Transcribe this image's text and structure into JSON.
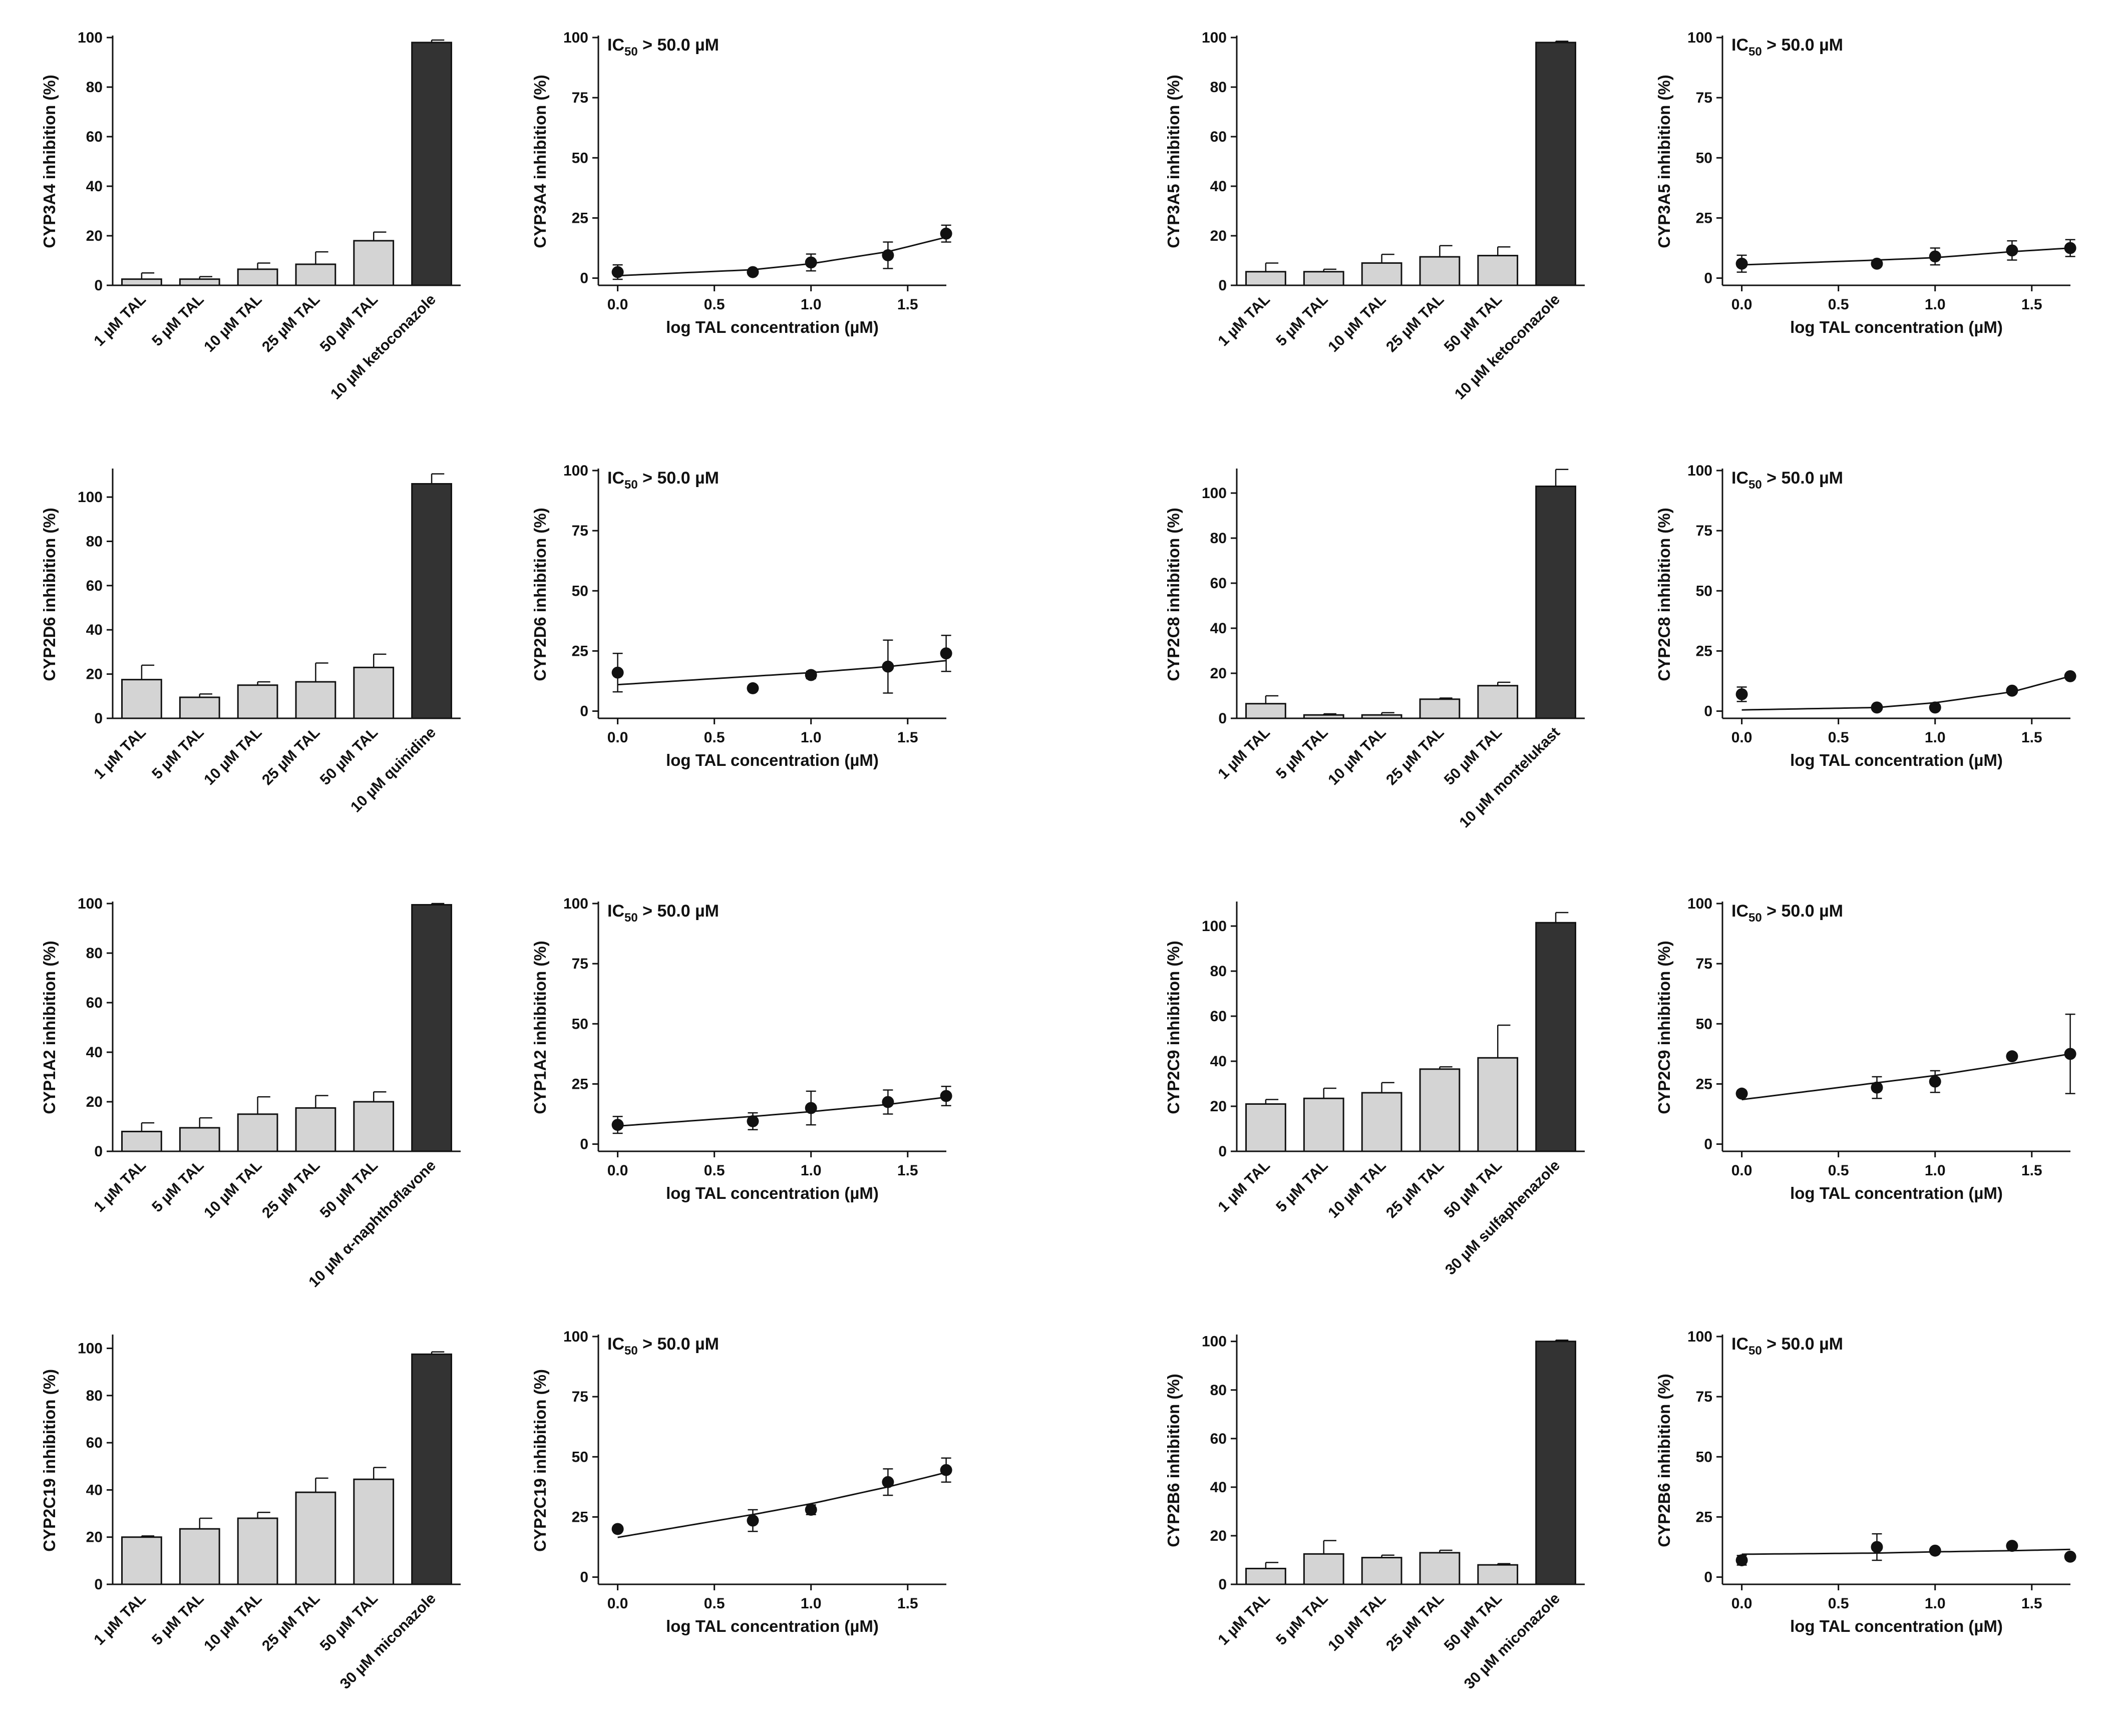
{
  "common": {
    "bar_categories": [
      "1 µM TAL",
      "5 µM TAL",
      "10 µM TAL",
      "25 µM TAL",
      "50 µM TAL"
    ],
    "dose_x": [
      0.0,
      0.699,
      1.0,
      1.398,
      1.699
    ],
    "dose_xticks": [
      "0.0",
      "0.5",
      "1.0",
      "1.5"
    ],
    "dose_xlabel": "log TAL concentration (µM)",
    "ic50_prefix": "IC",
    "ic50_sub": "50",
    "ic50_suffix": " > 50.0 µM",
    "colors": {
      "tal_bar": "#d4d4d4",
      "control_bar": "#333333",
      "axis": "#111111"
    }
  },
  "chart_data": [
    {
      "type": "bar",
      "enzyme": "CYP3A4",
      "ylabel": "CYP3A4 inhibition (%)",
      "categories": [
        "1 µM TAL",
        "5 µM TAL",
        "10 µM TAL",
        "25 µM TAL",
        "50 µM TAL",
        "10 µM ketoconazole"
      ],
      "values": [
        2.5,
        2.5,
        6.5,
        8.5,
        18,
        98
      ],
      "errors": [
        2.5,
        1.0,
        2.5,
        5.0,
        3.5,
        1.0
      ],
      "ylim": [
        0,
        100
      ],
      "yticks": [
        0,
        20,
        40,
        60,
        80,
        100
      ]
    },
    {
      "type": "scatter",
      "enzyme": "CYP3A4",
      "ylabel": "CYP3A4 inhibition (%)",
      "xlabel": "log TAL concentration (µM)",
      "ic50": "IC50 > 50.0 µM",
      "x": [
        0.0,
        0.699,
        1.0,
        1.398,
        1.699
      ],
      "y": [
        2.5,
        2.5,
        6.5,
        9.5,
        18.5
      ],
      "errors": [
        3,
        1,
        3.5,
        5.5,
        3.5
      ],
      "fit": [
        1.0,
        3.5,
        6.0,
        11.0,
        17.0
      ],
      "xlim": [
        -0.1,
        1.7
      ],
      "ylim": [
        -3,
        100
      ],
      "yticks": [
        0,
        25,
        50,
        75,
        100
      ]
    },
    {
      "type": "bar",
      "enzyme": "CYP3A5",
      "ylabel": "CYP3A5 inhibition (%)",
      "categories": [
        "1 µM TAL",
        "5 µM TAL",
        "10 µM TAL",
        "25 µM TAL",
        "50 µM TAL",
        "10 µM ketoconazole"
      ],
      "values": [
        5.5,
        5.5,
        9,
        11.5,
        12,
        98
      ],
      "errors": [
        3.5,
        1.0,
        3.5,
        4.5,
        3.5,
        0.5
      ],
      "ylim": [
        0,
        100
      ],
      "yticks": [
        0,
        20,
        40,
        60,
        80,
        100
      ]
    },
    {
      "type": "scatter",
      "enzyme": "CYP3A5",
      "ylabel": "CYP3A5 inhibition (%)",
      "xlabel": "log TAL concentration (µM)",
      "ic50": "IC50 > 50.0 µM",
      "x": [
        0.0,
        0.699,
        1.0,
        1.398,
        1.699
      ],
      "y": [
        6,
        6,
        9,
        11.5,
        12.5
      ],
      "errors": [
        3.5,
        1,
        3.5,
        4,
        3.5
      ],
      "fit": [
        5.5,
        7.5,
        8.5,
        11.0,
        12.5
      ],
      "xlim": [
        -0.1,
        1.7
      ],
      "ylim": [
        -3,
        100
      ],
      "yticks": [
        0,
        25,
        50,
        75,
        100
      ]
    },
    {
      "type": "bar",
      "enzyme": "CYP2D6",
      "ylabel": "CYP2D6 inhibition (%)",
      "categories": [
        "1 µM TAL",
        "5 µM TAL",
        "10 µM TAL",
        "25 µM TAL",
        "50 µM TAL",
        "10 µM quinidine"
      ],
      "values": [
        17.5,
        9.5,
        15,
        16.5,
        23,
        106
      ],
      "errors": [
        6.5,
        1.5,
        1.5,
        8.5,
        6.0,
        4.5
      ],
      "ylim": [
        0,
        112
      ],
      "yticks": [
        0,
        20,
        40,
        60,
        80,
        100
      ]
    },
    {
      "type": "scatter",
      "enzyme": "CYP2D6",
      "ylabel": "CYP2D6 inhibition (%)",
      "xlabel": "log TAL concentration (µM)",
      "ic50": "IC50 > 50.0 µM",
      "x": [
        0.0,
        0.699,
        1.0,
        1.398,
        1.699
      ],
      "y": [
        16,
        9.5,
        15,
        18.5,
        24
      ],
      "errors": [
        8,
        1,
        1.5,
        11,
        7.5
      ],
      "fit": [
        11.0,
        14.5,
        16.0,
        18.5,
        21.0
      ],
      "xlim": [
        -0.1,
        1.7
      ],
      "ylim": [
        -3,
        100
      ],
      "yticks": [
        0,
        25,
        50,
        75,
        100
      ]
    },
    {
      "type": "bar",
      "enzyme": "CYP2C8",
      "ylabel": "CYP2C8 inhibition (%)",
      "categories": [
        "1 µM TAL",
        "5 µM TAL",
        "10 µM TAL",
        "25 µM TAL",
        "50 µM TAL",
        "10 µM montelukast"
      ],
      "values": [
        6.5,
        1.5,
        1.5,
        8.5,
        14.5,
        103
      ],
      "errors": [
        3.5,
        0.5,
        1.0,
        0.5,
        1.5,
        7.5
      ],
      "ylim": [
        0,
        110
      ],
      "yticks": [
        0,
        20,
        40,
        60,
        80,
        100
      ]
    },
    {
      "type": "scatter",
      "enzyme": "CYP2C8",
      "ylabel": "CYP2C8 inhibition (%)",
      "xlabel": "log TAL concentration (µM)",
      "ic50": "IC50 > 50.0 µM",
      "x": [
        0.0,
        0.699,
        1.0,
        1.398,
        1.699
      ],
      "y": [
        7,
        1.5,
        1.5,
        8.5,
        14.5
      ],
      "errors": [
        3,
        0.5,
        0.5,
        0.5,
        0.5
      ],
      "fit": [
        0.5,
        1.5,
        3.5,
        8.0,
        14.5
      ],
      "xlim": [
        -0.1,
        1.7
      ],
      "ylim": [
        -3,
        100
      ],
      "yticks": [
        0,
        25,
        50,
        75,
        100
      ]
    },
    {
      "type": "bar",
      "enzyme": "CYP1A2",
      "ylabel": "CYP1A2 inhibition (%)",
      "categories": [
        "1 µM TAL",
        "5 µM TAL",
        "10 µM TAL",
        "25 µM TAL",
        "50 µM TAL",
        "10 µM α-naphthoflavone"
      ],
      "values": [
        8,
        9.5,
        15,
        17.5,
        20,
        99.5
      ],
      "errors": [
        3.5,
        4.0,
        7.0,
        5.0,
        4.0,
        0.5
      ],
      "ylim": [
        0,
        100
      ],
      "yticks": [
        0,
        20,
        40,
        60,
        80,
        100
      ]
    },
    {
      "type": "scatter",
      "enzyme": "CYP1A2",
      "ylabel": "CYP1A2 inhibition (%)",
      "xlabel": "log TAL concentration (µM)",
      "ic50": "IC50 > 50.0 µM",
      "x": [
        0.0,
        0.699,
        1.0,
        1.398,
        1.699
      ],
      "y": [
        8,
        9.5,
        15,
        17.5,
        20
      ],
      "errors": [
        3.5,
        3.5,
        7,
        5,
        4
      ],
      "fit": [
        7.5,
        11.5,
        13.5,
        16.5,
        19.5
      ],
      "xlim": [
        -0.1,
        1.7
      ],
      "ylim": [
        -3,
        100
      ],
      "yticks": [
        0,
        25,
        50,
        75,
        100
      ]
    },
    {
      "type": "bar",
      "enzyme": "CYP2C9",
      "ylabel": "CYP2C9 inhibition (%)",
      "categories": [
        "1 µM TAL",
        "5 µM TAL",
        "10 µM TAL",
        "25 µM TAL",
        "50 µM TAL",
        "30 µM sulfaphenazole"
      ],
      "values": [
        21,
        23.5,
        26,
        36.5,
        41.5,
        101.5
      ],
      "errors": [
        2.0,
        4.5,
        4.5,
        1.0,
        14.5,
        4.5
      ],
      "ylim": [
        0,
        110
      ],
      "yticks": [
        0,
        20,
        40,
        60,
        80,
        100
      ]
    },
    {
      "type": "scatter",
      "enzyme": "CYP2C9",
      "ylabel": "CYP2C9 inhibition (%)",
      "xlabel": "log TAL concentration (µM)",
      "ic50": "IC50 > 50.0 µM",
      "x": [
        0.0,
        0.699,
        1.0,
        1.398,
        1.699
      ],
      "y": [
        21,
        23.5,
        26,
        36.5,
        37.5
      ],
      "errors": [
        1,
        4.5,
        4.5,
        1,
        16.5
      ],
      "fit": [
        18.5,
        25.5,
        28.5,
        33.5,
        37.5
      ],
      "xlim": [
        -0.1,
        1.7
      ],
      "ylim": [
        -3,
        100
      ],
      "yticks": [
        0,
        25,
        50,
        75,
        100
      ]
    },
    {
      "type": "bar",
      "enzyme": "CYP2C19",
      "ylabel": "CYP2C19 inhibition (%)",
      "categories": [
        "1 µM TAL",
        "5 µM TAL",
        "10 µM TAL",
        "25 µM TAL",
        "50 µM TAL",
        "30 µM miconazole"
      ],
      "values": [
        20,
        23.5,
        28,
        39,
        44.5,
        97.5
      ],
      "errors": [
        0.5,
        4.5,
        2.5,
        6.0,
        5.0,
        1.0
      ],
      "ylim": [
        0,
        105
      ],
      "yticks": [
        0,
        20,
        40,
        60,
        80,
        100
      ]
    },
    {
      "type": "scatter",
      "enzyme": "CYP2C19",
      "ylabel": "CYP2C19 inhibition (%)",
      "xlabel": "log TAL concentration (µM)",
      "ic50": "IC50 > 50.0 µM",
      "x": [
        0.0,
        0.699,
        1.0,
        1.398,
        1.699
      ],
      "y": [
        20,
        23.5,
        28,
        39.5,
        44.5
      ],
      "errors": [
        0.5,
        4.5,
        2,
        5.5,
        5
      ],
      "fit": [
        16.5,
        26.0,
        30.5,
        37.5,
        43.5
      ],
      "xlim": [
        -0.1,
        1.7
      ],
      "ylim": [
        -3,
        100
      ],
      "yticks": [
        0,
        25,
        50,
        75,
        100
      ]
    },
    {
      "type": "bar",
      "enzyme": "CYP2B6",
      "ylabel": "CYP2B6 inhibition (%)",
      "categories": [
        "1 µM TAL",
        "5 µM TAL",
        "10 µM TAL",
        "25 µM TAL",
        "50 µM TAL",
        "30 µM miconazole"
      ],
      "values": [
        6.5,
        12.5,
        11,
        13,
        8,
        100
      ],
      "errors": [
        2.5,
        5.5,
        1.0,
        1.0,
        0.5,
        0.5
      ],
      "ylim": [
        0,
        102
      ],
      "yticks": [
        0,
        20,
        40,
        60,
        80,
        100
      ]
    },
    {
      "type": "scatter",
      "enzyme": "CYP2B6",
      "ylabel": "CYP2B6 inhibition (%)",
      "xlabel": "log TAL concentration (µM)",
      "ic50": "IC50 > 50.0 µM",
      "x": [
        0.0,
        0.699,
        1.0,
        1.398,
        1.699
      ],
      "y": [
        7,
        12.5,
        11,
        13,
        8.5
      ],
      "errors": [
        2,
        5.5,
        0.5,
        0.5,
        0.5
      ],
      "fit": [
        9.5,
        10.0,
        10.5,
        11.0,
        11.5
      ],
      "xlim": [
        -0.1,
        1.7
      ],
      "ylim": [
        -3,
        100
      ],
      "yticks": [
        0,
        25,
        50,
        75,
        100
      ]
    }
  ]
}
